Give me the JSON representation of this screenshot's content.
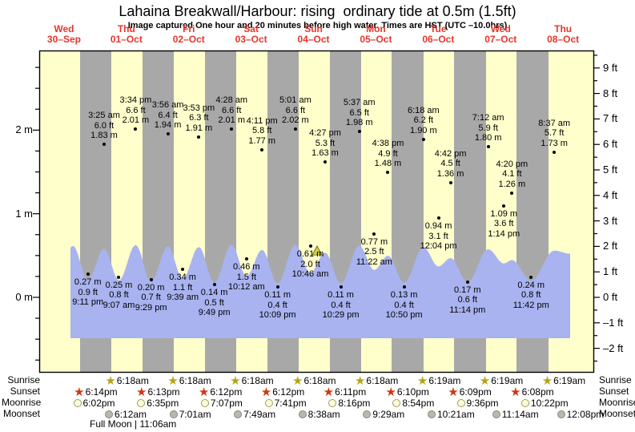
{
  "title": "Lahaina Breakwall/Harbour: rising  ordinary tide at 0.5m (1.5ft)",
  "subtitle": "Image captured One hour and 20 minutes before high water. Times are HST (UTC –10.0hrs)",
  "days": [
    {
      "weekday": "Wed",
      "date": "30–Sep"
    },
    {
      "weekday": "Thu",
      "date": "01–Oct"
    },
    {
      "weekday": "Fri",
      "date": "02–Oct"
    },
    {
      "weekday": "Sat",
      "date": "03–Oct"
    },
    {
      "weekday": "Sun",
      "date": "04–Oct"
    },
    {
      "weekday": "Mon",
      "date": "05–Oct"
    },
    {
      "weekday": "Tue",
      "date": "06–Oct"
    },
    {
      "weekday": "Wed",
      "date": "07–Oct"
    },
    {
      "weekday": "Thu",
      "date": "08–Oct"
    }
  ],
  "chart_data": {
    "type": "area",
    "title": "Lahaina Breakwall/Harbour tide curve, Wed 30-Sep to Thu 08-Oct",
    "y_axis_left": {
      "unit": "m",
      "labels": [
        {
          "label": "2 m",
          "value": 2
        },
        {
          "label": "1 m",
          "value": 1
        },
        {
          "label": "0 m",
          "value": 0
        }
      ]
    },
    "y_axis_right": {
      "unit": "ft",
      "labels": [
        {
          "label": "9 ft",
          "value": 9
        },
        {
          "label": "8 ft",
          "value": 8
        },
        {
          "label": "7 ft",
          "value": 7
        },
        {
          "label": "6 ft",
          "value": 6
        },
        {
          "label": "5 ft",
          "value": 5
        },
        {
          "label": "4 ft",
          "value": 4
        },
        {
          "label": "3 ft",
          "value": 3
        },
        {
          "label": "2 ft",
          "value": 2
        },
        {
          "label": "1 ft",
          "value": 1
        },
        {
          "label": "0 ft",
          "value": 0
        },
        {
          "label": "–1 ft",
          "value": -1
        },
        {
          "label": "–2 ft",
          "value": -2
        }
      ]
    },
    "events": [
      {
        "kind": "low",
        "day": 0,
        "time": "9:11 pm",
        "ft": "0.9 ft",
        "m": "0.27 m"
      },
      {
        "kind": "high",
        "day": 1,
        "time": "3:25 am",
        "ft": "6.0 ft",
        "m": "1.83 m"
      },
      {
        "kind": "low",
        "day": 1,
        "time": "9:07 am",
        "ft": "0.8 ft",
        "m": "0.25 m"
      },
      {
        "kind": "high",
        "day": 1,
        "time": "3:34 pm",
        "ft": "6.6 ft",
        "m": "2.01 m"
      },
      {
        "kind": "low",
        "day": 1,
        "time": "9:29 pm",
        "ft": "0.7 ft",
        "m": "0.20 m"
      },
      {
        "kind": "high",
        "day": 2,
        "time": "3:56 am",
        "ft": "6.4 ft",
        "m": "1.94 m"
      },
      {
        "kind": "low",
        "day": 2,
        "time": "9:39 am",
        "ft": "1.1 ft",
        "m": "0.34 m"
      },
      {
        "kind": "high",
        "day": 2,
        "time": "3:53 pm",
        "ft": "6.3 ft",
        "m": "1.91 m"
      },
      {
        "kind": "low",
        "day": 2,
        "time": "9:49 pm",
        "ft": "0.5 ft",
        "m": "0.14 m"
      },
      {
        "kind": "high",
        "day": 3,
        "time": "4:28 am",
        "ft": "6.6 ft",
        "m": "2.01 m"
      },
      {
        "kind": "low",
        "day": 3,
        "time": "10:12 am",
        "ft": "1.5 ft",
        "m": "0.46 m"
      },
      {
        "kind": "high",
        "day": 3,
        "time": "4:11 pm",
        "ft": "5.8 ft",
        "m": "1.77 m"
      },
      {
        "kind": "low",
        "day": 3,
        "time": "10:09 pm",
        "ft": "0.4 ft",
        "m": "0.11 m"
      },
      {
        "kind": "high",
        "day": 4,
        "time": "5:01 am",
        "ft": "6.6 ft",
        "m": "2.02 m"
      },
      {
        "kind": "low",
        "day": 4,
        "time": "10:46 am",
        "ft": "2.0 ft",
        "m": "0.61 m"
      },
      {
        "kind": "high",
        "day": 4,
        "time": "4:27 pm",
        "ft": "5.3 ft",
        "m": "1.63 m"
      },
      {
        "kind": "low",
        "day": 4,
        "time": "10:29 pm",
        "ft": "0.4 ft",
        "m": "0.11 m"
      },
      {
        "kind": "high",
        "day": 5,
        "time": "5:37 am",
        "ft": "6.5 ft",
        "m": "1.98 m"
      },
      {
        "kind": "low",
        "day": 5,
        "time": "11:22 am",
        "ft": "2.5 ft",
        "m": "0.77 m"
      },
      {
        "kind": "high",
        "day": 5,
        "time": "4:38 pm",
        "ft": "4.9 ft",
        "m": "1.48 m"
      },
      {
        "kind": "low",
        "day": 5,
        "time": "10:50 pm",
        "ft": "0.4 ft",
        "m": "0.13 m"
      },
      {
        "kind": "high",
        "day": 6,
        "time": "6:18 am",
        "ft": "6.2 ft",
        "m": "1.90 m"
      },
      {
        "kind": "low",
        "day": 6,
        "time": "12:04 pm",
        "ft": "3.1 ft",
        "m": "0.94 m"
      },
      {
        "kind": "high",
        "day": 6,
        "time": "4:42 pm",
        "ft": "4.5 ft",
        "m": "1.36 m"
      },
      {
        "kind": "low",
        "day": 6,
        "time": "11:14 pm",
        "ft": "0.6 ft",
        "m": "0.17 m"
      },
      {
        "kind": "high",
        "day": 7,
        "time": "7:12 am",
        "ft": "5.9 ft",
        "m": "1.80 m"
      },
      {
        "kind": "low",
        "day": 7,
        "time": "1:14 pm",
        "ft": "3.6 ft",
        "m": "1.09 m"
      },
      {
        "kind": "high",
        "day": 7,
        "time": "4:20 pm",
        "ft": "4.1 ft",
        "m": "1.26 m"
      },
      {
        "kind": "low",
        "day": 7,
        "time": "11:42 pm",
        "ft": "0.8 ft",
        "m": "0.24 m"
      },
      {
        "kind": "high",
        "day": 8,
        "time": "8:37 am",
        "ft": "5.7 ft",
        "m": "1.73 m"
      }
    ]
  },
  "astro": {
    "rows": [
      {
        "name": "Sunrise",
        "icon": "sunrise-star",
        "start_day": 1,
        "times": [
          "6:18am",
          "6:18am",
          "6:18am",
          "6:18am",
          "6:18am",
          "6:19am",
          "6:19am",
          "6:19am"
        ]
      },
      {
        "name": "Sunset",
        "icon": "sunset-star",
        "start_day": 0,
        "times": [
          "6:14pm",
          "6:13pm",
          "6:12pm",
          "6:12pm",
          "6:11pm",
          "6:10pm",
          "6:09pm",
          "6:08pm"
        ]
      },
      {
        "name": "Moonrise",
        "icon": "moonrise-circle",
        "start_day": 0,
        "times": [
          "6:02pm",
          "6:35pm",
          "7:07pm",
          "7:41pm",
          "8:16pm",
          "8:54pm",
          "9:36pm",
          "10:22pm"
        ]
      },
      {
        "name": "Moonset",
        "icon": "moonset-circle",
        "start_day": 1,
        "times": [
          "6:12am",
          "7:01am",
          "7:49am",
          "8:38am",
          "9:29am",
          "10:21am",
          "11:14am",
          "12:08pm"
        ]
      }
    ],
    "moon_phase": "Full Moon | 11:06am"
  },
  "colors": {
    "plot_background": "#ffffcc",
    "night_column": "#a8a8a8",
    "tide_fill": "#a9b3f0",
    "day_label_red": "#e8352a",
    "sunrise_star": "#b3a412",
    "sunset_star": "#d2350e",
    "moonrise_fill": "#ffffd6",
    "moonrise_stroke": "#9a9a6a",
    "moonset_fill": "#b9b9aa",
    "moonset_stroke": "#88887a",
    "marker_fill": "#d6d13d",
    "marker_stroke": "#70701c",
    "axis": "#000000"
  }
}
